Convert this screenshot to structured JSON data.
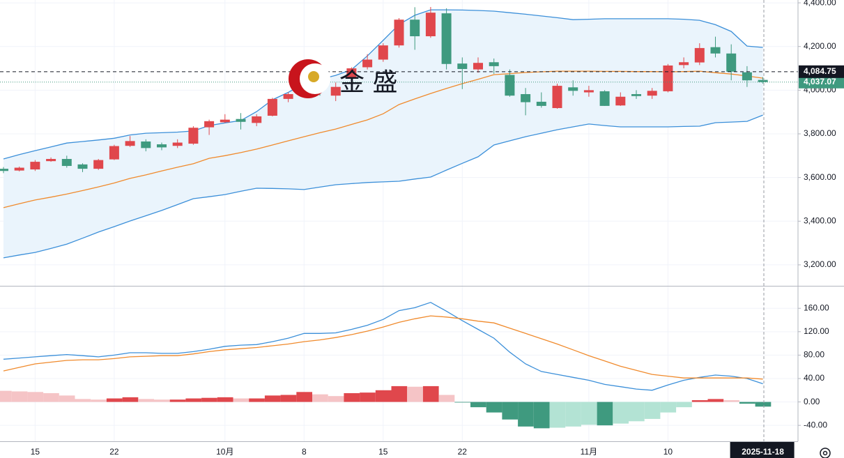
{
  "chart_data": [
    {
      "type": "candlestick",
      "watermark": "金 盛",
      "categories": [
        null,
        null,
        "15",
        null,
        null,
        null,
        null,
        "22",
        null,
        null,
        null,
        null,
        null,
        null,
        "10月",
        null,
        null,
        null,
        null,
        "8",
        null,
        null,
        null,
        null,
        "15",
        null,
        null,
        null,
        null,
        "22",
        null,
        null,
        null,
        null,
        null,
        null,
        null,
        "11月",
        null,
        null,
        null,
        null,
        "10",
        null,
        null,
        null,
        null,
        null,
        "2025-11-18"
      ],
      "open": [
        3640,
        3632,
        3637,
        3675,
        3685,
        3660,
        3640,
        3683,
        3745,
        3765,
        3752,
        3745,
        3755,
        3830,
        3853,
        3868,
        3850,
        3883,
        3960,
        3982,
        4045,
        3975,
        4055,
        4105,
        4140,
        4205,
        4323,
        4247,
        4352,
        4122,
        4095,
        4128,
        4070,
        3982,
        3947,
        3918,
        4013,
        3990,
        3995,
        3930,
        3982,
        3975,
        3995,
        4115,
        4127,
        4197,
        4168,
        4082,
        4047
      ],
      "high": [
        3648,
        3650,
        3680,
        3692,
        3700,
        3665,
        3685,
        3750,
        3790,
        3775,
        3760,
        3775,
        3835,
        3865,
        3890,
        3895,
        3890,
        3965,
        3990,
        4060,
        4060,
        4035,
        4105,
        4165,
        4215,
        4330,
        4380,
        4381,
        4375,
        4150,
        4150,
        4145,
        4095,
        4010,
        3990,
        4030,
        4045,
        4020,
        4000,
        3990,
        4000,
        4010,
        4120,
        4150,
        4215,
        4245,
        4210,
        4110,
        4060
      ],
      "low": [
        3620,
        3628,
        3630,
        3672,
        3645,
        3625,
        3635,
        3680,
        3740,
        3720,
        3725,
        3735,
        3750,
        3795,
        3850,
        3820,
        3835,
        3880,
        3945,
        3980,
        3975,
        3950,
        4050,
        4095,
        4130,
        4195,
        4185,
        4240,
        4095,
        4005,
        4080,
        4075,
        3970,
        3885,
        3920,
        3915,
        3975,
        3970,
        3928,
        3928,
        3960,
        3960,
        3990,
        4100,
        4115,
        4150,
        4045,
        4015,
        4030
      ],
      "close": [
        3630,
        3645,
        3672,
        3685,
        3653,
        3640,
        3680,
        3744,
        3767,
        3735,
        3738,
        3760,
        3828,
        3858,
        3865,
        3855,
        3880,
        3960,
        3982,
        4045,
        3998,
        4015,
        4100,
        4140,
        4205,
        4323,
        4247,
        4355,
        4120,
        4097,
        4125,
        4110,
        3975,
        3945,
        3928,
        4020,
        3997,
        4000,
        3928,
        3970,
        3973,
        3997,
        4113,
        4128,
        4193,
        4168,
        4085,
        4045,
        4037.07
      ],
      "up_color": "#e0474c",
      "down_color": "#3f9a7f",
      "band_fill": "#eaf4fc",
      "lines": [
        {
          "color": "#3b8fd9",
          "values": [
            3685,
            3705,
            3723,
            3740,
            3758,
            3765,
            3772,
            3780,
            3795,
            3803,
            3805,
            3808,
            3813,
            3838,
            3850,
            3861,
            3902,
            3956,
            3990,
            4030,
            4050,
            4068,
            4094,
            4157,
            4228,
            4301,
            4343,
            4368,
            4368,
            4367,
            4365,
            4362,
            4355,
            4348,
            4340,
            4332,
            4323,
            4325,
            4327,
            4327,
            4327,
            4327,
            4327,
            4325,
            4320,
            4300,
            4269,
            4202,
            4196
          ]
        },
        {
          "color": "#f08a2c",
          "values": [
            3462,
            3480,
            3497,
            3510,
            3524,
            3540,
            3557,
            3575,
            3596,
            3612,
            3630,
            3647,
            3663,
            3688,
            3700,
            3714,
            3730,
            3749,
            3768,
            3787,
            3805,
            3822,
            3843,
            3864,
            3892,
            3934,
            3960,
            3985,
            4008,
            4030,
            4050,
            4071,
            4076,
            4081,
            4084,
            4087,
            4087,
            4087,
            4086,
            4086,
            4085,
            4085,
            4084,
            4085,
            4087,
            4080,
            4074,
            4065,
            4055
          ]
        },
        {
          "color": "#3b8fd9",
          "values": [
            3232,
            3245,
            3257,
            3275,
            3295,
            3322,
            3350,
            3375,
            3401,
            3425,
            3449,
            3476,
            3503,
            3512,
            3522,
            3537,
            3551,
            3550,
            3548,
            3545,
            3556,
            3567,
            3572,
            3577,
            3580,
            3583,
            3593,
            3602,
            3634,
            3665,
            3695,
            3749,
            3768,
            3787,
            3803,
            3819,
            3832,
            3845,
            3838,
            3832,
            3832,
            3832,
            3832,
            3834,
            3835,
            3851,
            3854,
            3857,
            3886
          ]
        }
      ],
      "price_lines": [
        {
          "value": 4037.07,
          "label": "4,037.07",
          "color": "#3f9a7f"
        },
        {
          "value": 4084.75,
          "label": "4,084.75",
          "color": "#131722"
        }
      ],
      "ylim": [
        3104,
        4413
      ],
      "yticks": [
        {
          "value": 3200,
          "label": "3,200.00"
        },
        {
          "value": 3400,
          "label": "3,400.00"
        },
        {
          "value": 3600,
          "label": "3,600.00"
        },
        {
          "value": 3800,
          "label": "3,800.00"
        },
        {
          "value": 4000,
          "label": "4,000.00"
        },
        {
          "value": 4200,
          "label": "4,200.00"
        },
        {
          "value": 4400,
          "label": "4,400.00"
        }
      ],
      "grid": true
    },
    {
      "type": "macd",
      "lines": [
        {
          "color": "#3b8fd9",
          "values": [
            73,
            75,
            77,
            79,
            81,
            79,
            77,
            80,
            84,
            84,
            83,
            83,
            86,
            90,
            95,
            97,
            98,
            103,
            109,
            117,
            117,
            118,
            124,
            131,
            141,
            156,
            161,
            170,
            155,
            139,
            124,
            109,
            85,
            65,
            52,
            47,
            42,
            37,
            30,
            26,
            22,
            20,
            29,
            37,
            42,
            46,
            44,
            40,
            31
          ]
        },
        {
          "color": "#f08a2c",
          "values": [
            53,
            59,
            65,
            68,
            71,
            72,
            72,
            74,
            77,
            78,
            79,
            79,
            82,
            86,
            89,
            91,
            93,
            96,
            99,
            103,
            106,
            110,
            115,
            121,
            128,
            136,
            142,
            147,
            145,
            142,
            138,
            135,
            126,
            117,
            108,
            99,
            89,
            79,
            70,
            61,
            54,
            47,
            44,
            41,
            41,
            41,
            41,
            41,
            39
          ]
        }
      ],
      "histogram": [
        19,
        18,
        17,
        15,
        11,
        5,
        4,
        6,
        8,
        5,
        4,
        4,
        6,
        7,
        8,
        6,
        6,
        11,
        12,
        17,
        13,
        10,
        15,
        16,
        20,
        27,
        26,
        27,
        12,
        -1,
        -9,
        -18,
        -30,
        -42,
        -45,
        -44,
        -42,
        -39,
        -40,
        -37,
        -33,
        -29,
        -18,
        -9,
        3,
        5,
        3,
        -3,
        -8
      ],
      "histogram_colors": [
        "#e0474c",
        "#f5c4c6",
        "#3f9a7f",
        "#b3e3d4"
      ],
      "ylim": [
        -66,
        196
      ],
      "yticks": [
        {
          "value": -40,
          "label": "-40.00"
        },
        {
          "value": 0,
          "label": "0.00"
        },
        {
          "value": 40,
          "label": "40.00"
        },
        {
          "value": 80,
          "label": "80.00"
        },
        {
          "value": 120,
          "label": "120.00"
        },
        {
          "value": 160,
          "label": "160.00"
        }
      ],
      "grid": true
    }
  ]
}
